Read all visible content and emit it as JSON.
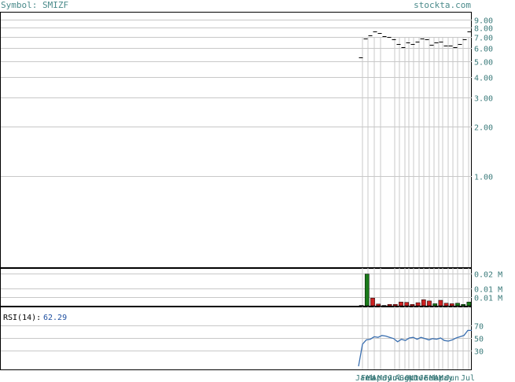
{
  "header": {
    "symbol_label": "Symbol: SMIZF",
    "site": "stockta.com"
  },
  "colors": {
    "up": "#1a7a1a",
    "down": "#cc2222",
    "grid": "#c8c8c8",
    "rsi_line": "#3a6fb0",
    "axis_text": "#3a7a7a"
  },
  "chart_data": [
    {
      "type": "line",
      "panel": "price",
      "scale": "log",
      "ylim": [
        0.28,
        10.0
      ],
      "yticks": [
        1.0,
        2.0,
        3.0,
        4.0,
        5.0,
        6.0,
        7.0,
        8.0,
        9.0
      ],
      "ytick_labels": [
        "1.00",
        "2.00",
        "3.00",
        "4.00",
        "5.00",
        "6.00",
        "7.00",
        "8.00",
        "9.00"
      ],
      "grid": true,
      "series": [
        {
          "close": [
            5.3,
            6.9,
            7.2,
            7.6,
            7.4,
            7.1,
            7.0,
            6.8,
            6.4,
            6.1,
            6.5,
            6.4,
            6.6,
            6.9,
            6.8,
            6.3,
            6.5,
            6.6,
            6.2,
            6.2,
            6.1,
            6.4,
            6.8,
            7.6
          ]
        }
      ]
    },
    {
      "type": "bar",
      "panel": "volume",
      "ylim": [
        0,
        0.022
      ],
      "yticks": [
        0.005,
        0.01,
        0.019
      ],
      "ytick_labels": [
        "0.01 M",
        "0.01 M",
        "0.02 M"
      ],
      "grid": true,
      "series": [
        {
          "values": [
            0.0002,
            0.0185,
            0.0045,
            0.001,
            0.0002,
            0.0008,
            0.0008,
            0.0022,
            0.002,
            0.0008,
            0.0018,
            0.0035,
            0.0028,
            0.0012,
            0.0032,
            0.0015,
            0.0012,
            0.0015,
            0.0008,
            0.0022
          ]
        }
      ],
      "direction": [
        "down",
        "up",
        "down",
        "down",
        "up",
        "down",
        "down",
        "down",
        "down",
        "down",
        "down",
        "down",
        "down",
        "up",
        "down",
        "down",
        "down",
        "up",
        "up",
        "up"
      ]
    },
    {
      "type": "line",
      "panel": "rsi",
      "label": "RSI(14):",
      "last_value": "62.29",
      "ylim": [
        0,
        100
      ],
      "yticks": [
        30,
        50,
        70
      ],
      "ytick_labels": [
        "30",
        "50",
        "70"
      ],
      "grid": true,
      "series": [
        {
          "values": [
            5,
            40,
            47,
            48,
            52,
            51,
            54,
            53,
            51,
            49,
            44,
            48,
            46,
            50,
            51,
            48,
            51,
            49,
            47,
            49,
            48,
            50,
            46,
            45,
            47,
            50,
            52,
            54,
            62,
            62
          ]
        }
      ]
    }
  ],
  "xaxis": {
    "tick_labels": [
      "Jan",
      "Feb",
      "Mar",
      "Apr",
      "May",
      "Jun",
      "Jul",
      "Aug",
      "Sep",
      "Oct",
      "Nov",
      "Dec",
      "Jan",
      "Feb",
      "Mar",
      "Apr",
      "May",
      "Jun",
      "Jul"
    ]
  }
}
